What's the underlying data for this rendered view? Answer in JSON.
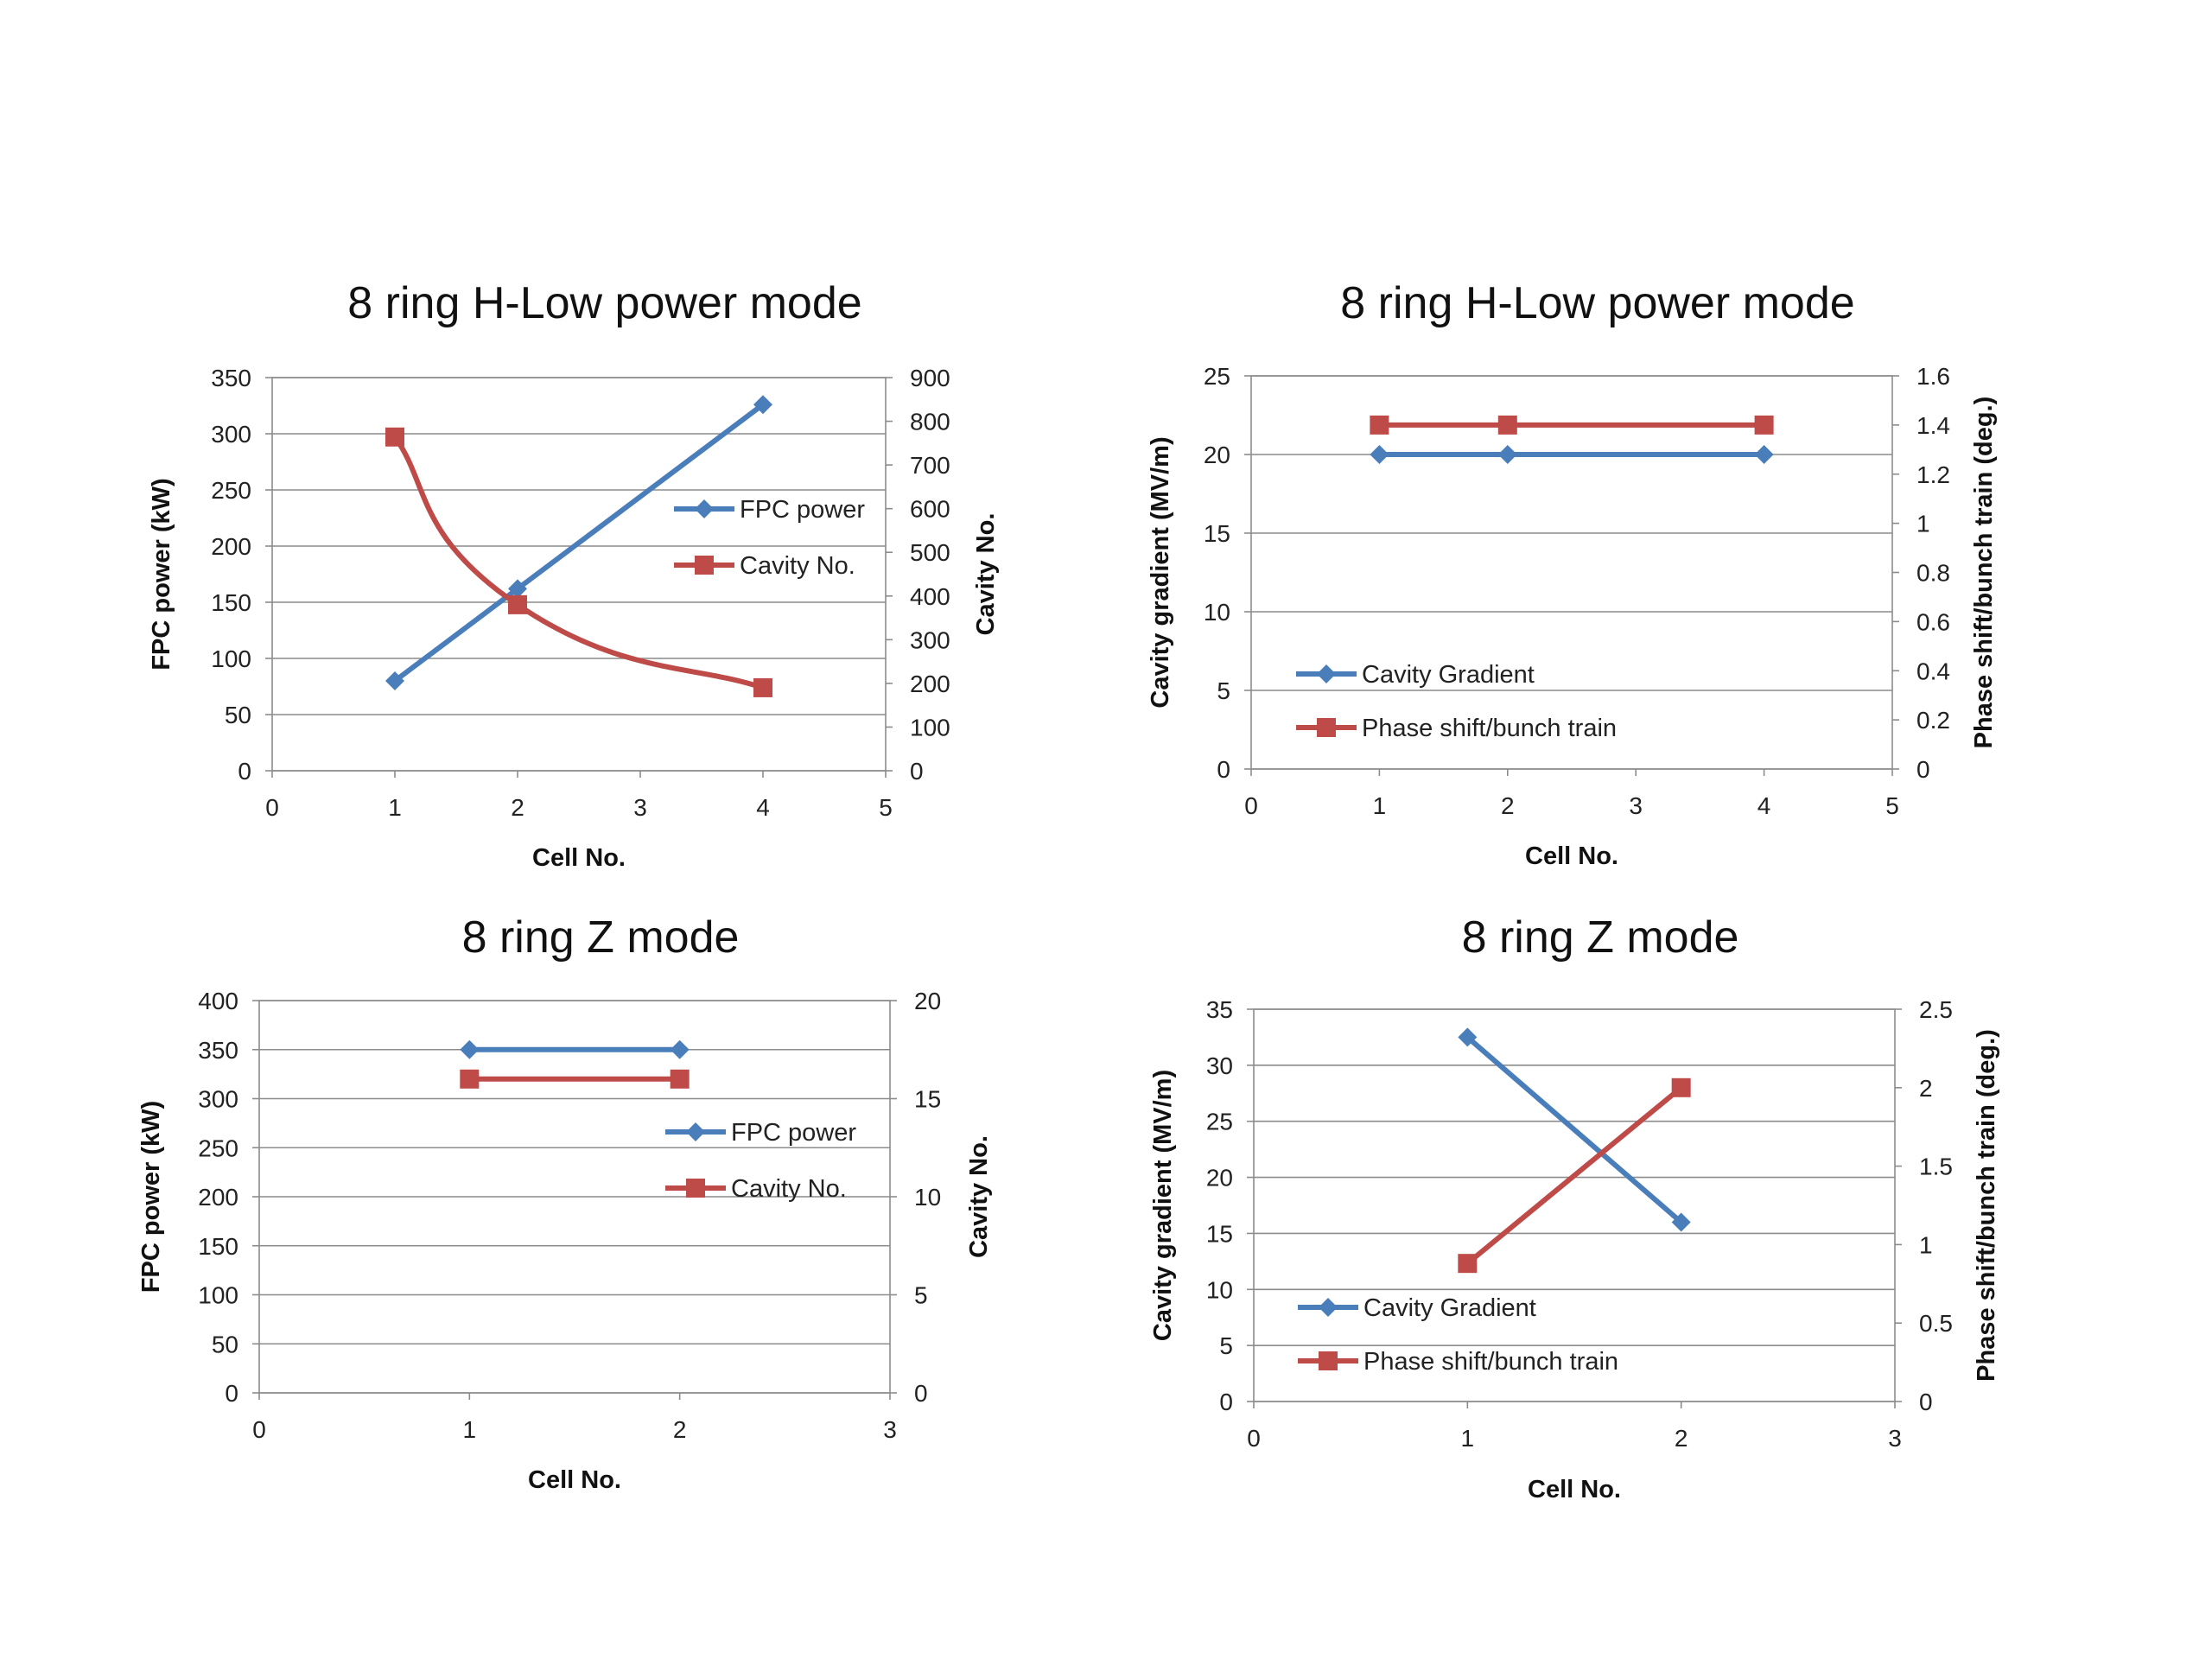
{
  "chart_data": [
    {
      "type": "line",
      "title": "8 ring H-Low power mode",
      "xlabel": "Cell No.",
      "ylabel": "FPC power (kW)",
      "ylabel_right": "Cavity No.",
      "xlim": [
        0,
        5
      ],
      "ylim": [
        0,
        350
      ],
      "ylim_right": [
        0,
        900
      ],
      "xticks": [
        0,
        1,
        2,
        3,
        4,
        5
      ],
      "yticks": [
        0,
        50,
        100,
        150,
        200,
        250,
        300,
        350
      ],
      "yticks_right": [
        0,
        100,
        200,
        300,
        400,
        500,
        600,
        700,
        800,
        900
      ],
      "grid": true,
      "legend_position": "right",
      "series": [
        {
          "name": "FPC power",
          "axis": "left",
          "marker": "diamond",
          "color": "#4a7ebb",
          "smooth": false,
          "x": [
            1,
            2,
            4
          ],
          "values": [
            80,
            162,
            326
          ]
        },
        {
          "name": "Cavity No.",
          "axis": "right",
          "marker": "square",
          "color": "#be4b48",
          "smooth": true,
          "x": [
            1,
            2,
            4
          ],
          "values": [
            764,
            380,
            190
          ]
        }
      ]
    },
    {
      "type": "line",
      "title": "8 ring H-Low power mode",
      "xlabel": "Cell No.",
      "ylabel": "Cavity gradient  (MV/m)",
      "ylabel_right": "Phase shift/bunch train (deg.)",
      "xlim": [
        0,
        5
      ],
      "ylim": [
        0,
        25
      ],
      "ylim_right": [
        0,
        1.6
      ],
      "xticks": [
        0,
        1,
        2,
        3,
        4,
        5
      ],
      "yticks": [
        0,
        5,
        10,
        15,
        20,
        25
      ],
      "yticks_right": [
        0,
        0.2,
        0.4,
        0.6,
        0.8,
        1,
        1.2,
        1.4,
        1.6
      ],
      "grid": true,
      "legend_position": "bottom-left",
      "series": [
        {
          "name": "Cavity Gradient",
          "axis": "left",
          "marker": "diamond",
          "color": "#4a7ebb",
          "smooth": false,
          "x": [
            1,
            2,
            4
          ],
          "values": [
            20,
            20,
            20
          ]
        },
        {
          "name": "Phase shift/bunch train",
          "axis": "right",
          "marker": "square",
          "color": "#be4b48",
          "smooth": false,
          "x": [
            1,
            2,
            4
          ],
          "values": [
            1.4,
            1.4,
            1.4
          ]
        }
      ]
    },
    {
      "type": "line",
      "title": "8 ring Z mode",
      "xlabel": "Cell No.",
      "ylabel": "FPC power (kW)",
      "ylabel_right": "Cavity No.",
      "xlim": [
        0,
        3
      ],
      "ylim": [
        0,
        400
      ],
      "ylim_right": [
        0,
        20
      ],
      "xticks": [
        0,
        1,
        2,
        3
      ],
      "yticks": [
        0,
        50,
        100,
        150,
        200,
        250,
        300,
        350,
        400
      ],
      "yticks_right": [
        0,
        5,
        10,
        15,
        20
      ],
      "grid": true,
      "legend_position": "right",
      "series": [
        {
          "name": "FPC power",
          "axis": "left",
          "marker": "diamond",
          "color": "#4a7ebb",
          "smooth": false,
          "x": [
            1,
            2
          ],
          "values": [
            350,
            350
          ]
        },
        {
          "name": "Cavity No.",
          "axis": "right",
          "marker": "square",
          "color": "#be4b48",
          "smooth": false,
          "x": [
            1,
            2
          ],
          "values": [
            16,
            16
          ]
        }
      ]
    },
    {
      "type": "line",
      "title": "8 ring Z mode",
      "xlabel": "Cell No.",
      "ylabel": "Cavity gradient  (MV/m)",
      "ylabel_right": "Phase shift/bunch train (deg.)",
      "xlim": [
        0,
        3
      ],
      "ylim": [
        0,
        35
      ],
      "ylim_right": [
        0,
        2.5
      ],
      "xticks": [
        0,
        1,
        2,
        3
      ],
      "yticks": [
        0,
        5,
        10,
        15,
        20,
        25,
        30,
        35
      ],
      "yticks_right": [
        0,
        0.5,
        1,
        1.5,
        2,
        2.5
      ],
      "grid": true,
      "legend_position": "bottom-left",
      "series": [
        {
          "name": "Cavity Gradient",
          "axis": "left",
          "marker": "diamond",
          "color": "#4a7ebb",
          "smooth": false,
          "x": [
            1,
            2
          ],
          "values": [
            32.5,
            16
          ]
        },
        {
          "name": "Phase shift/bunch train",
          "axis": "right",
          "marker": "square",
          "color": "#be4b48",
          "smooth": false,
          "x": [
            1,
            2
          ],
          "values": [
            0.88,
            2.0
          ]
        }
      ]
    }
  ]
}
